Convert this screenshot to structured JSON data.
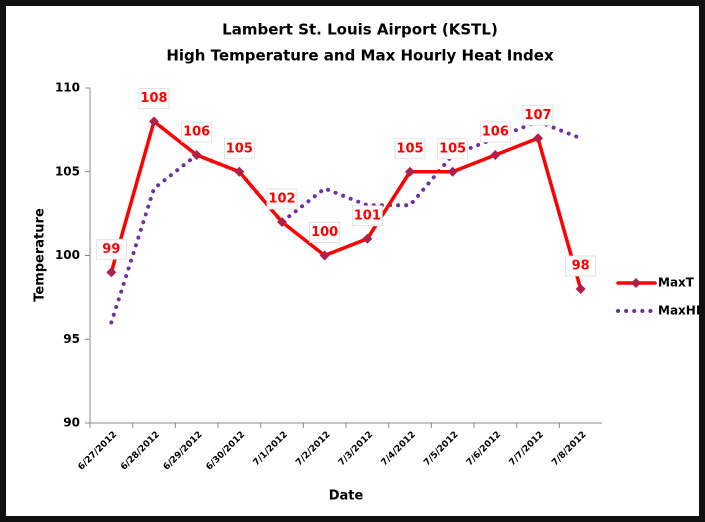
{
  "chart_data": {
    "type": "line",
    "title": "Lambert St. Louis Airport (KSTL)",
    "subtitle": "High Temperature and Max Hourly Heat Index",
    "x_label": "Date",
    "y_label": "Temperature",
    "categories": [
      "6/27/2012",
      "6/28/2012",
      "6/29/2012",
      "6/30/2012",
      "7/1/2012",
      "7/2/2012",
      "7/3/2012",
      "7/4/2012",
      "7/5/2012",
      "7/6/2012",
      "7/7/2012",
      "7/8/2012"
    ],
    "series": [
      {
        "name": "MaxT",
        "color": "#ff0000",
        "marker_color": "#b0204a",
        "style": "solid",
        "values": [
          99,
          108,
          106,
          105,
          102,
          100,
          101,
          105,
          105,
          106,
          107,
          98
        ],
        "data_labels": true
      },
      {
        "name": "MaxHI",
        "color": "#7030a0",
        "style": "dotted",
        "values": [
          96,
          104,
          106,
          105,
          102,
          104,
          103,
          103,
          106,
          107,
          108,
          107
        ]
      }
    ],
    "ylim": [
      90,
      110
    ],
    "yticks": [
      90,
      95,
      100,
      105,
      110
    ],
    "grid": false,
    "legend": "right"
  }
}
